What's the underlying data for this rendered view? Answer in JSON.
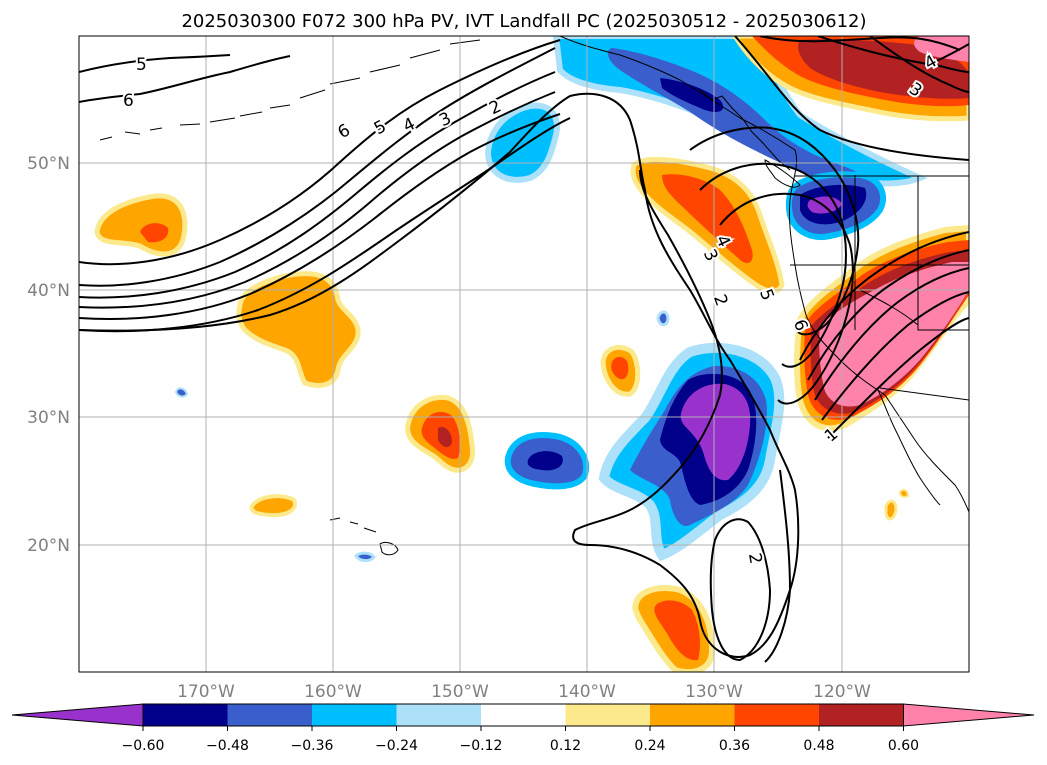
{
  "chart_data": {
    "type": "map",
    "title": "2025030300 F072 300 hPa PV, IVT Landfall PC (2025030512 - 2025030612)",
    "lat_ticks": [
      "20°N",
      "30°N",
      "40°N",
      "50°N"
    ],
    "lon_ticks": [
      "170°W",
      "160°W",
      "150°W",
      "140°W",
      "130°W",
      "120°W"
    ],
    "extent": {
      "lon_min": -180,
      "lon_max": -110,
      "lat_min": 10,
      "lat_max": 60
    },
    "gridlines": true,
    "colorbar": {
      "orientation": "horizontal",
      "extend": "both",
      "ticks": [
        "−0.60",
        "−0.48",
        "−0.36",
        "−0.24",
        "−0.12",
        "0.12",
        "0.24",
        "0.36",
        "0.48",
        "0.60"
      ],
      "colors": [
        "#9932CC",
        "#00008B",
        "#3A5FCD",
        "#00BFFF",
        "#ADE1F9",
        "#FFFFFF",
        "#FCE98C",
        "#FFA500",
        "#FF4500",
        "#B22222",
        "#FF82AB"
      ]
    },
    "contour_labels": [
      "5",
      "6",
      "6",
      "5",
      "4",
      "3",
      "2",
      "4",
      "3",
      "2",
      "5",
      "6",
      "4",
      "3",
      "1",
      "2"
    ]
  }
}
